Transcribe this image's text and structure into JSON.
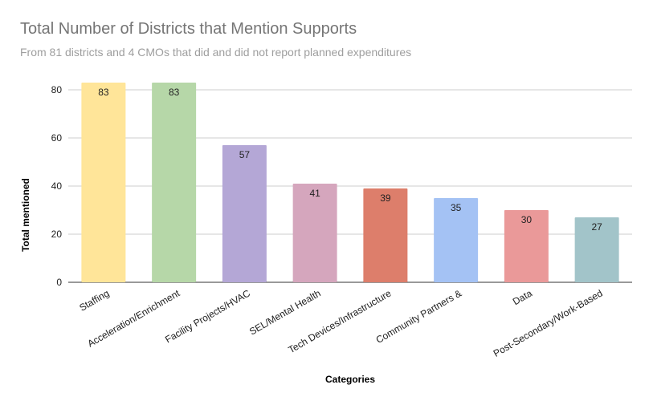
{
  "chart_data": {
    "type": "bar",
    "title": "Total Number of Districts that Mention Supports",
    "subtitle": "From 81 districts and 4 CMOs that did and did not report planned expenditures",
    "xlabel": "Categories",
    "ylabel": "Total mentioned",
    "ylim": [
      0,
      88
    ],
    "yticks": [
      0,
      20,
      40,
      60,
      80
    ],
    "grid": true,
    "categories": [
      "Staffing",
      "Acceleration/Enrichment",
      "Facility Projects/HVAC",
      "SEL/Mental Health",
      "Tech Devices/Infrastructure",
      "Community Partners &",
      "Data",
      "Post-Secondary/Work-Based"
    ],
    "values": [
      83,
      83,
      57,
      41,
      39,
      35,
      30,
      27
    ],
    "colors": [
      "#ffe599",
      "#b6d7a8",
      "#b4a7d6",
      "#d5a6bd",
      "#dd7e6b",
      "#a4c2f4",
      "#ea9999",
      "#a2c4c9"
    ]
  }
}
